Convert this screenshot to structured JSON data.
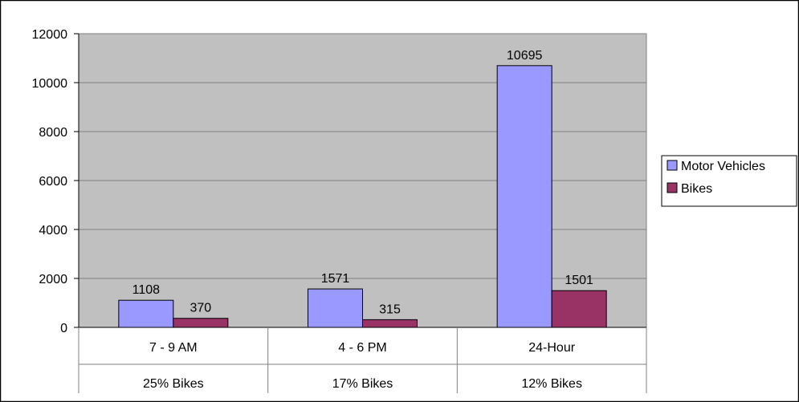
{
  "chart_data": {
    "type": "bar",
    "categories": [
      "7 - 9 AM",
      "4 - 6 PM",
      "24-Hour"
    ],
    "category_sublabels": [
      "25% Bikes",
      "17% Bikes",
      "12% Bikes"
    ],
    "series": [
      {
        "name": "Motor Vehicles",
        "values": [
          1108,
          1571,
          10695
        ],
        "color": "#9999ff"
      },
      {
        "name": "Bikes",
        "values": [
          370,
          315,
          1501
        ],
        "color": "#993366"
      }
    ],
    "data_labels": true,
    "ylim": [
      0,
      12000
    ],
    "yticks": [
      0,
      2000,
      4000,
      6000,
      8000,
      10000,
      12000
    ],
    "grid": true,
    "legend": "right",
    "plot_background": "#c0c0c0"
  }
}
